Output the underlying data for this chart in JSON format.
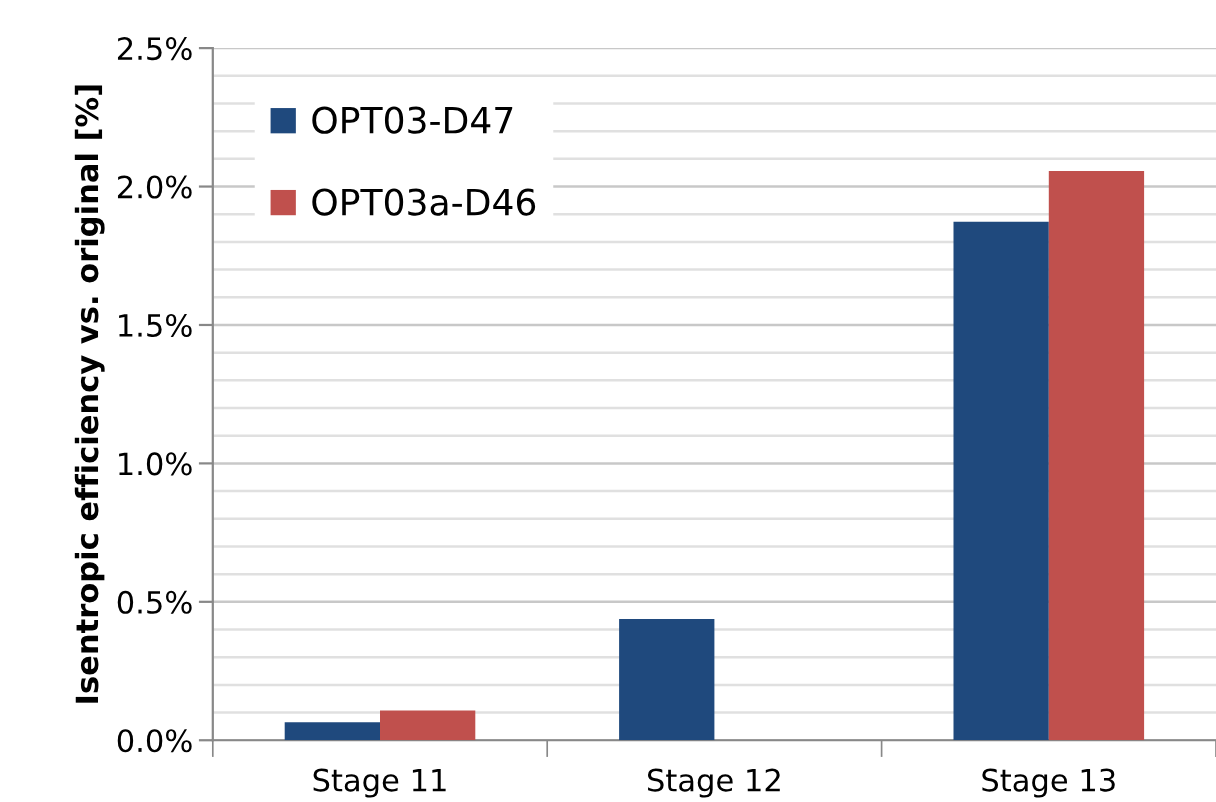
{
  "chart_data": {
    "type": "bar",
    "ylabel": "Isentropic efficiency vs. original [%]",
    "categories": [
      "Stage 11",
      "Stage 12",
      "Stage 13"
    ],
    "series": [
      {
        "name": "OPT03-D47",
        "color": "#1f497d",
        "values": [
          0.065,
          0.438,
          1.873
        ]
      },
      {
        "name": "OPT03a-D46",
        "color": "#c0504d",
        "values": [
          0.107,
          null,
          2.056
        ]
      }
    ],
    "ylim": [
      0,
      2.5
    ],
    "yticks": [
      {
        "value": 0,
        "label": "0.0%"
      },
      {
        "value": 0.1,
        "label": null
      },
      {
        "value": 0.2,
        "label": null
      },
      {
        "value": 0.3,
        "label": null
      },
      {
        "value": 0.4,
        "label": null
      },
      {
        "value": 0.5,
        "label": "0.5%"
      },
      {
        "value": 0.6,
        "label": null
      },
      {
        "value": 0.7,
        "label": null
      },
      {
        "value": 0.8,
        "label": null
      },
      {
        "value": 0.9,
        "label": null
      },
      {
        "value": 1.0,
        "label": "1.0%"
      },
      {
        "value": 1.1,
        "label": null
      },
      {
        "value": 1.2,
        "label": null
      },
      {
        "value": 1.3,
        "label": null
      },
      {
        "value": 1.4,
        "label": null
      },
      {
        "value": 1.5,
        "label": "1.5%"
      },
      {
        "value": 1.6,
        "label": null
      },
      {
        "value": 1.7,
        "label": null
      },
      {
        "value": 1.8,
        "label": null
      },
      {
        "value": 1.9,
        "label": null
      },
      {
        "value": 2.0,
        "label": "2.0%"
      },
      {
        "value": 2.1,
        "label": null
      },
      {
        "value": 2.2,
        "label": null
      },
      {
        "value": 2.3,
        "label": null
      },
      {
        "value": 2.4,
        "label": null
      },
      {
        "value": 2.5,
        "label": "2.5%"
      }
    ],
    "grid": "y",
    "legend": "top left"
  }
}
